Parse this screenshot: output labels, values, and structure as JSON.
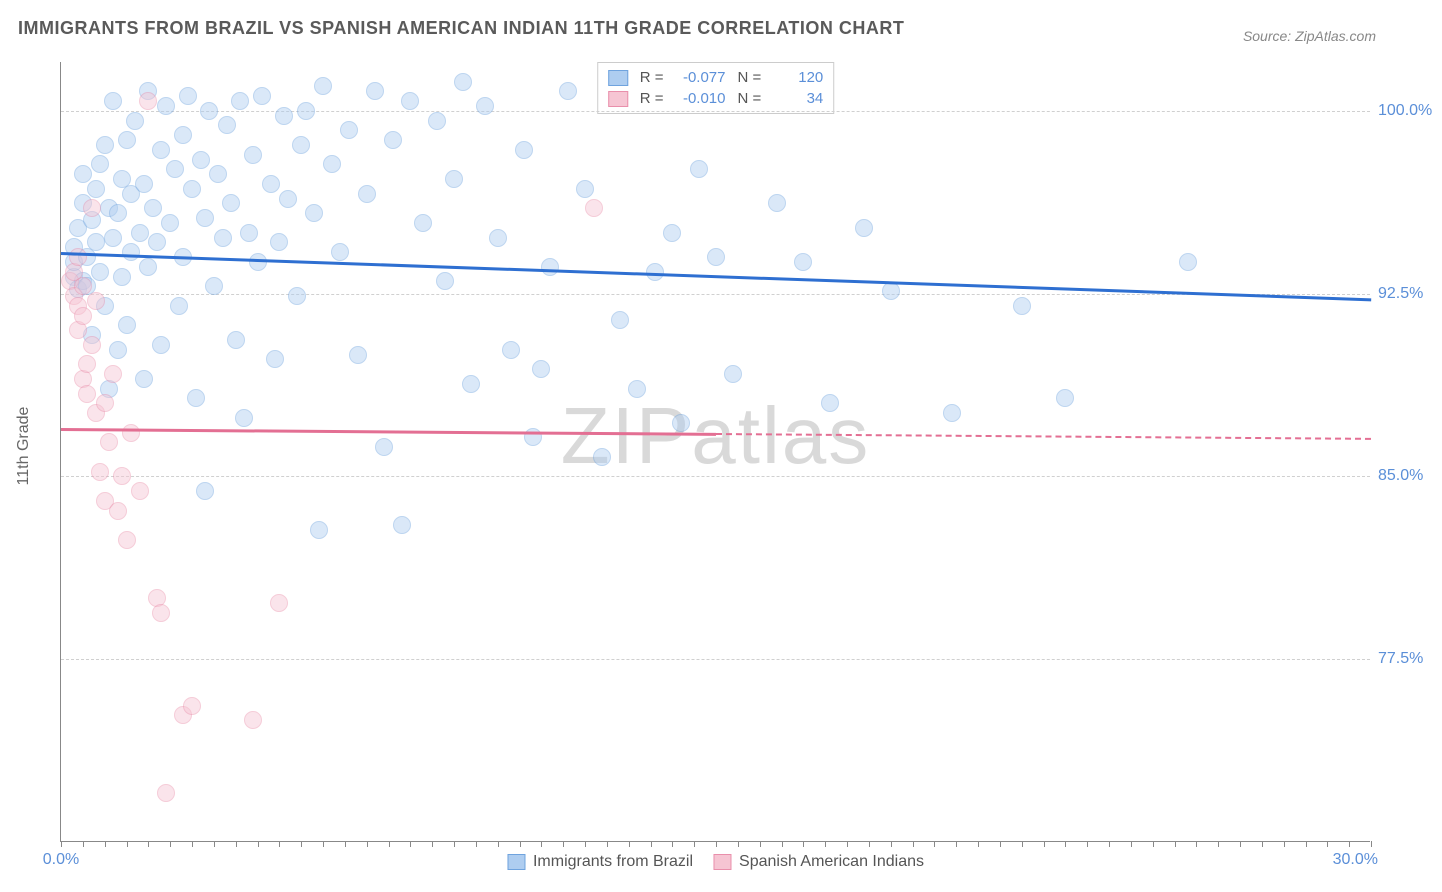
{
  "title": "IMMIGRANTS FROM BRAZIL VS SPANISH AMERICAN INDIAN 11TH GRADE CORRELATION CHART",
  "source": "Source: ZipAtlas.com",
  "watermark": "ZIPatlas",
  "y_axis_label": "11th Grade",
  "chart": {
    "type": "scatter",
    "xlim": [
      0,
      30
    ],
    "ylim": [
      70,
      102
    ],
    "x_ticks": {
      "min_label": "0.0%",
      "max_label": "30.0%",
      "minor_step": 0.5
    },
    "y_ticks": [
      {
        "value": 77.5,
        "label": "77.5%"
      },
      {
        "value": 85.0,
        "label": "85.0%"
      },
      {
        "value": 92.5,
        "label": "92.5%"
      },
      {
        "value": 100.0,
        "label": "100.0%"
      }
    ],
    "background_color": "#ffffff",
    "grid_color": "#d0d0d0",
    "marker_radius": 9,
    "marker_opacity": 0.45,
    "series": [
      {
        "name": "Immigrants from Brazil",
        "color_fill": "#aecdf0",
        "color_stroke": "#6fa3de",
        "trend_color": "#2e6fd1",
        "R": "-0.077",
        "N": "120",
        "trend": {
          "x1": 0,
          "y1": 94.2,
          "x2": 30,
          "y2": 92.3,
          "solid_until_x": 30
        },
        "points": [
          [
            0.3,
            93.2
          ],
          [
            0.3,
            93.8
          ],
          [
            0.3,
            94.4
          ],
          [
            0.4,
            92.7
          ],
          [
            0.4,
            95.2
          ],
          [
            0.5,
            93.0
          ],
          [
            0.5,
            96.2
          ],
          [
            0.5,
            97.4
          ],
          [
            0.6,
            92.8
          ],
          [
            0.6,
            94.0
          ],
          [
            0.7,
            90.8
          ],
          [
            0.7,
            95.5
          ],
          [
            0.8,
            94.6
          ],
          [
            0.8,
            96.8
          ],
          [
            0.9,
            93.4
          ],
          [
            0.9,
            97.8
          ],
          [
            1.0,
            92.0
          ],
          [
            1.0,
            98.6
          ],
          [
            1.1,
            88.6
          ],
          [
            1.1,
            96.0
          ],
          [
            1.2,
            94.8
          ],
          [
            1.2,
            100.4
          ],
          [
            1.3,
            90.2
          ],
          [
            1.3,
            95.8
          ],
          [
            1.4,
            97.2
          ],
          [
            1.4,
            93.2
          ],
          [
            1.5,
            98.8
          ],
          [
            1.5,
            91.2
          ],
          [
            1.6,
            96.6
          ],
          [
            1.6,
            94.2
          ],
          [
            1.7,
            99.6
          ],
          [
            1.8,
            95.0
          ],
          [
            1.9,
            89.0
          ],
          [
            1.9,
            97.0
          ],
          [
            2.0,
            93.6
          ],
          [
            2.0,
            100.8
          ],
          [
            2.1,
            96.0
          ],
          [
            2.2,
            94.6
          ],
          [
            2.3,
            98.4
          ],
          [
            2.3,
            90.4
          ],
          [
            2.4,
            100.2
          ],
          [
            2.5,
            95.4
          ],
          [
            2.6,
            97.6
          ],
          [
            2.7,
            92.0
          ],
          [
            2.8,
            99.0
          ],
          [
            2.8,
            94.0
          ],
          [
            2.9,
            100.6
          ],
          [
            3.0,
            96.8
          ],
          [
            3.1,
            88.2
          ],
          [
            3.2,
            98.0
          ],
          [
            3.3,
            95.6
          ],
          [
            3.3,
            84.4
          ],
          [
            3.4,
            100.0
          ],
          [
            3.5,
            92.8
          ],
          [
            3.6,
            97.4
          ],
          [
            3.7,
            94.8
          ],
          [
            3.8,
            99.4
          ],
          [
            3.9,
            96.2
          ],
          [
            4.0,
            90.6
          ],
          [
            4.1,
            100.4
          ],
          [
            4.2,
            87.4
          ],
          [
            4.3,
            95.0
          ],
          [
            4.4,
            98.2
          ],
          [
            4.5,
            93.8
          ],
          [
            4.6,
            100.6
          ],
          [
            4.8,
            97.0
          ],
          [
            4.9,
            89.8
          ],
          [
            5.0,
            94.6
          ],
          [
            5.1,
            99.8
          ],
          [
            5.2,
            96.4
          ],
          [
            5.4,
            92.4
          ],
          [
            5.5,
            98.6
          ],
          [
            5.6,
            100.0
          ],
          [
            5.8,
            95.8
          ],
          [
            5.9,
            82.8
          ],
          [
            6.0,
            101.0
          ],
          [
            6.2,
            97.8
          ],
          [
            6.4,
            94.2
          ],
          [
            6.6,
            99.2
          ],
          [
            6.8,
            90.0
          ],
          [
            7.0,
            96.6
          ],
          [
            7.2,
            100.8
          ],
          [
            7.4,
            86.2
          ],
          [
            7.6,
            98.8
          ],
          [
            7.8,
            83.0
          ],
          [
            8.0,
            100.4
          ],
          [
            8.3,
            95.4
          ],
          [
            8.6,
            99.6
          ],
          [
            8.8,
            93.0
          ],
          [
            9.0,
            97.2
          ],
          [
            9.2,
            101.2
          ],
          [
            9.4,
            88.8
          ],
          [
            9.7,
            100.2
          ],
          [
            10.0,
            94.8
          ],
          [
            10.3,
            90.2
          ],
          [
            10.6,
            98.4
          ],
          [
            10.8,
            86.6
          ],
          [
            11.0,
            89.4
          ],
          [
            11.2,
            93.6
          ],
          [
            11.6,
            100.8
          ],
          [
            12.0,
            96.8
          ],
          [
            12.4,
            85.8
          ],
          [
            12.8,
            91.4
          ],
          [
            13.2,
            88.6
          ],
          [
            13.6,
            93.4
          ],
          [
            14.0,
            95.0
          ],
          [
            14.2,
            87.2
          ],
          [
            14.6,
            97.6
          ],
          [
            15.0,
            94.0
          ],
          [
            15.4,
            89.2
          ],
          [
            16.4,
            96.2
          ],
          [
            17.0,
            93.8
          ],
          [
            17.6,
            88.0
          ],
          [
            18.4,
            95.2
          ],
          [
            19.0,
            92.6
          ],
          [
            20.4,
            87.6
          ],
          [
            22.0,
            92.0
          ],
          [
            23.0,
            88.2
          ],
          [
            25.8,
            93.8
          ]
        ]
      },
      {
        "name": "Spanish American Indians",
        "color_fill": "#f6c5d3",
        "color_stroke": "#e98fab",
        "trend_color": "#e36f93",
        "R": "-0.010",
        "N": "34",
        "trend": {
          "x1": 0,
          "y1": 87.0,
          "x2": 30,
          "y2": 86.6,
          "solid_until_x": 15
        },
        "points": [
          [
            0.2,
            93.0
          ],
          [
            0.3,
            92.4
          ],
          [
            0.3,
            93.4
          ],
          [
            0.4,
            91.0
          ],
          [
            0.4,
            92.0
          ],
          [
            0.4,
            94.0
          ],
          [
            0.5,
            89.0
          ],
          [
            0.5,
            91.6
          ],
          [
            0.5,
            92.8
          ],
          [
            0.6,
            89.6
          ],
          [
            0.6,
            88.4
          ],
          [
            0.7,
            96.0
          ],
          [
            0.7,
            90.4
          ],
          [
            0.8,
            87.6
          ],
          [
            0.8,
            92.2
          ],
          [
            0.9,
            85.2
          ],
          [
            1.0,
            88.0
          ],
          [
            1.0,
            84.0
          ],
          [
            1.1,
            86.4
          ],
          [
            1.2,
            89.2
          ],
          [
            1.3,
            83.6
          ],
          [
            1.4,
            85.0
          ],
          [
            1.5,
            82.4
          ],
          [
            1.6,
            86.8
          ],
          [
            1.8,
            84.4
          ],
          [
            2.0,
            100.4
          ],
          [
            2.2,
            80.0
          ],
          [
            2.3,
            79.4
          ],
          [
            2.4,
            72.0
          ],
          [
            2.8,
            75.2
          ],
          [
            3.0,
            75.6
          ],
          [
            4.4,
            75.0
          ],
          [
            5.0,
            79.8
          ],
          [
            12.2,
            96.0
          ]
        ]
      }
    ]
  }
}
